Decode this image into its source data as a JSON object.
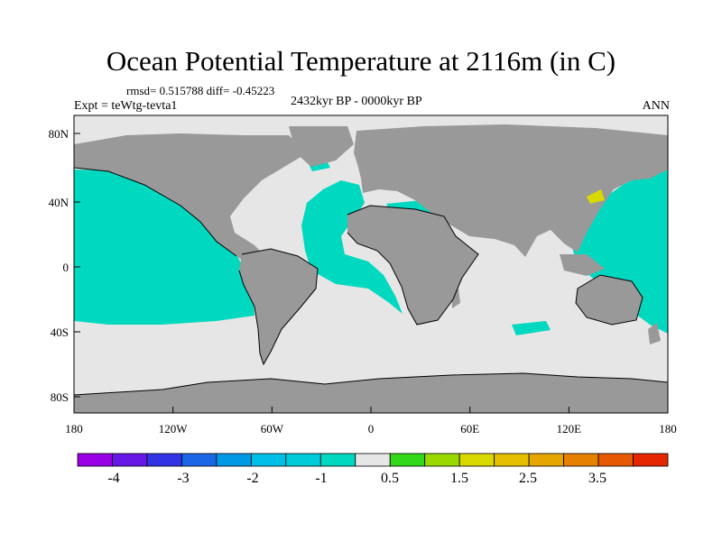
{
  "title": "Ocean Potential Temperature at 2116m (in C)",
  "stats_line": "rmsd= 0.515788 diff= -0.45223",
  "experiment": "Expt = teWtg-tevta1",
  "period": "2432kyr BP - 0000kyr BP",
  "season": "ANN",
  "colors": {
    "land": "#999999",
    "near_zero": "#e6e6e6",
    "cold_bin": "#00d9bf",
    "warm_bin": "#d9d900",
    "coast": "#000000"
  },
  "map": {
    "lon_ticks": [
      "180",
      "120W",
      "60W",
      "0",
      "60E",
      "120E",
      "180"
    ],
    "lat_ticks": [
      "80N",
      "40N",
      "0",
      "40S",
      "80S"
    ]
  },
  "colorbar": {
    "colors": [
      "#9900e6",
      "#6619e6",
      "#3333e6",
      "#1a66e6",
      "#0099e6",
      "#00bfe6",
      "#00ccd9",
      "#00d9bf",
      "#e6e6e6",
      "#33d919",
      "#99d900",
      "#d9d900",
      "#e6bf00",
      "#e6a600",
      "#e68000",
      "#e65900",
      "#e62600"
    ],
    "labels": [
      "-4",
      "-3",
      "-2",
      "-1",
      "0.5",
      "1.5",
      "2.5",
      "3.5"
    ]
  }
}
